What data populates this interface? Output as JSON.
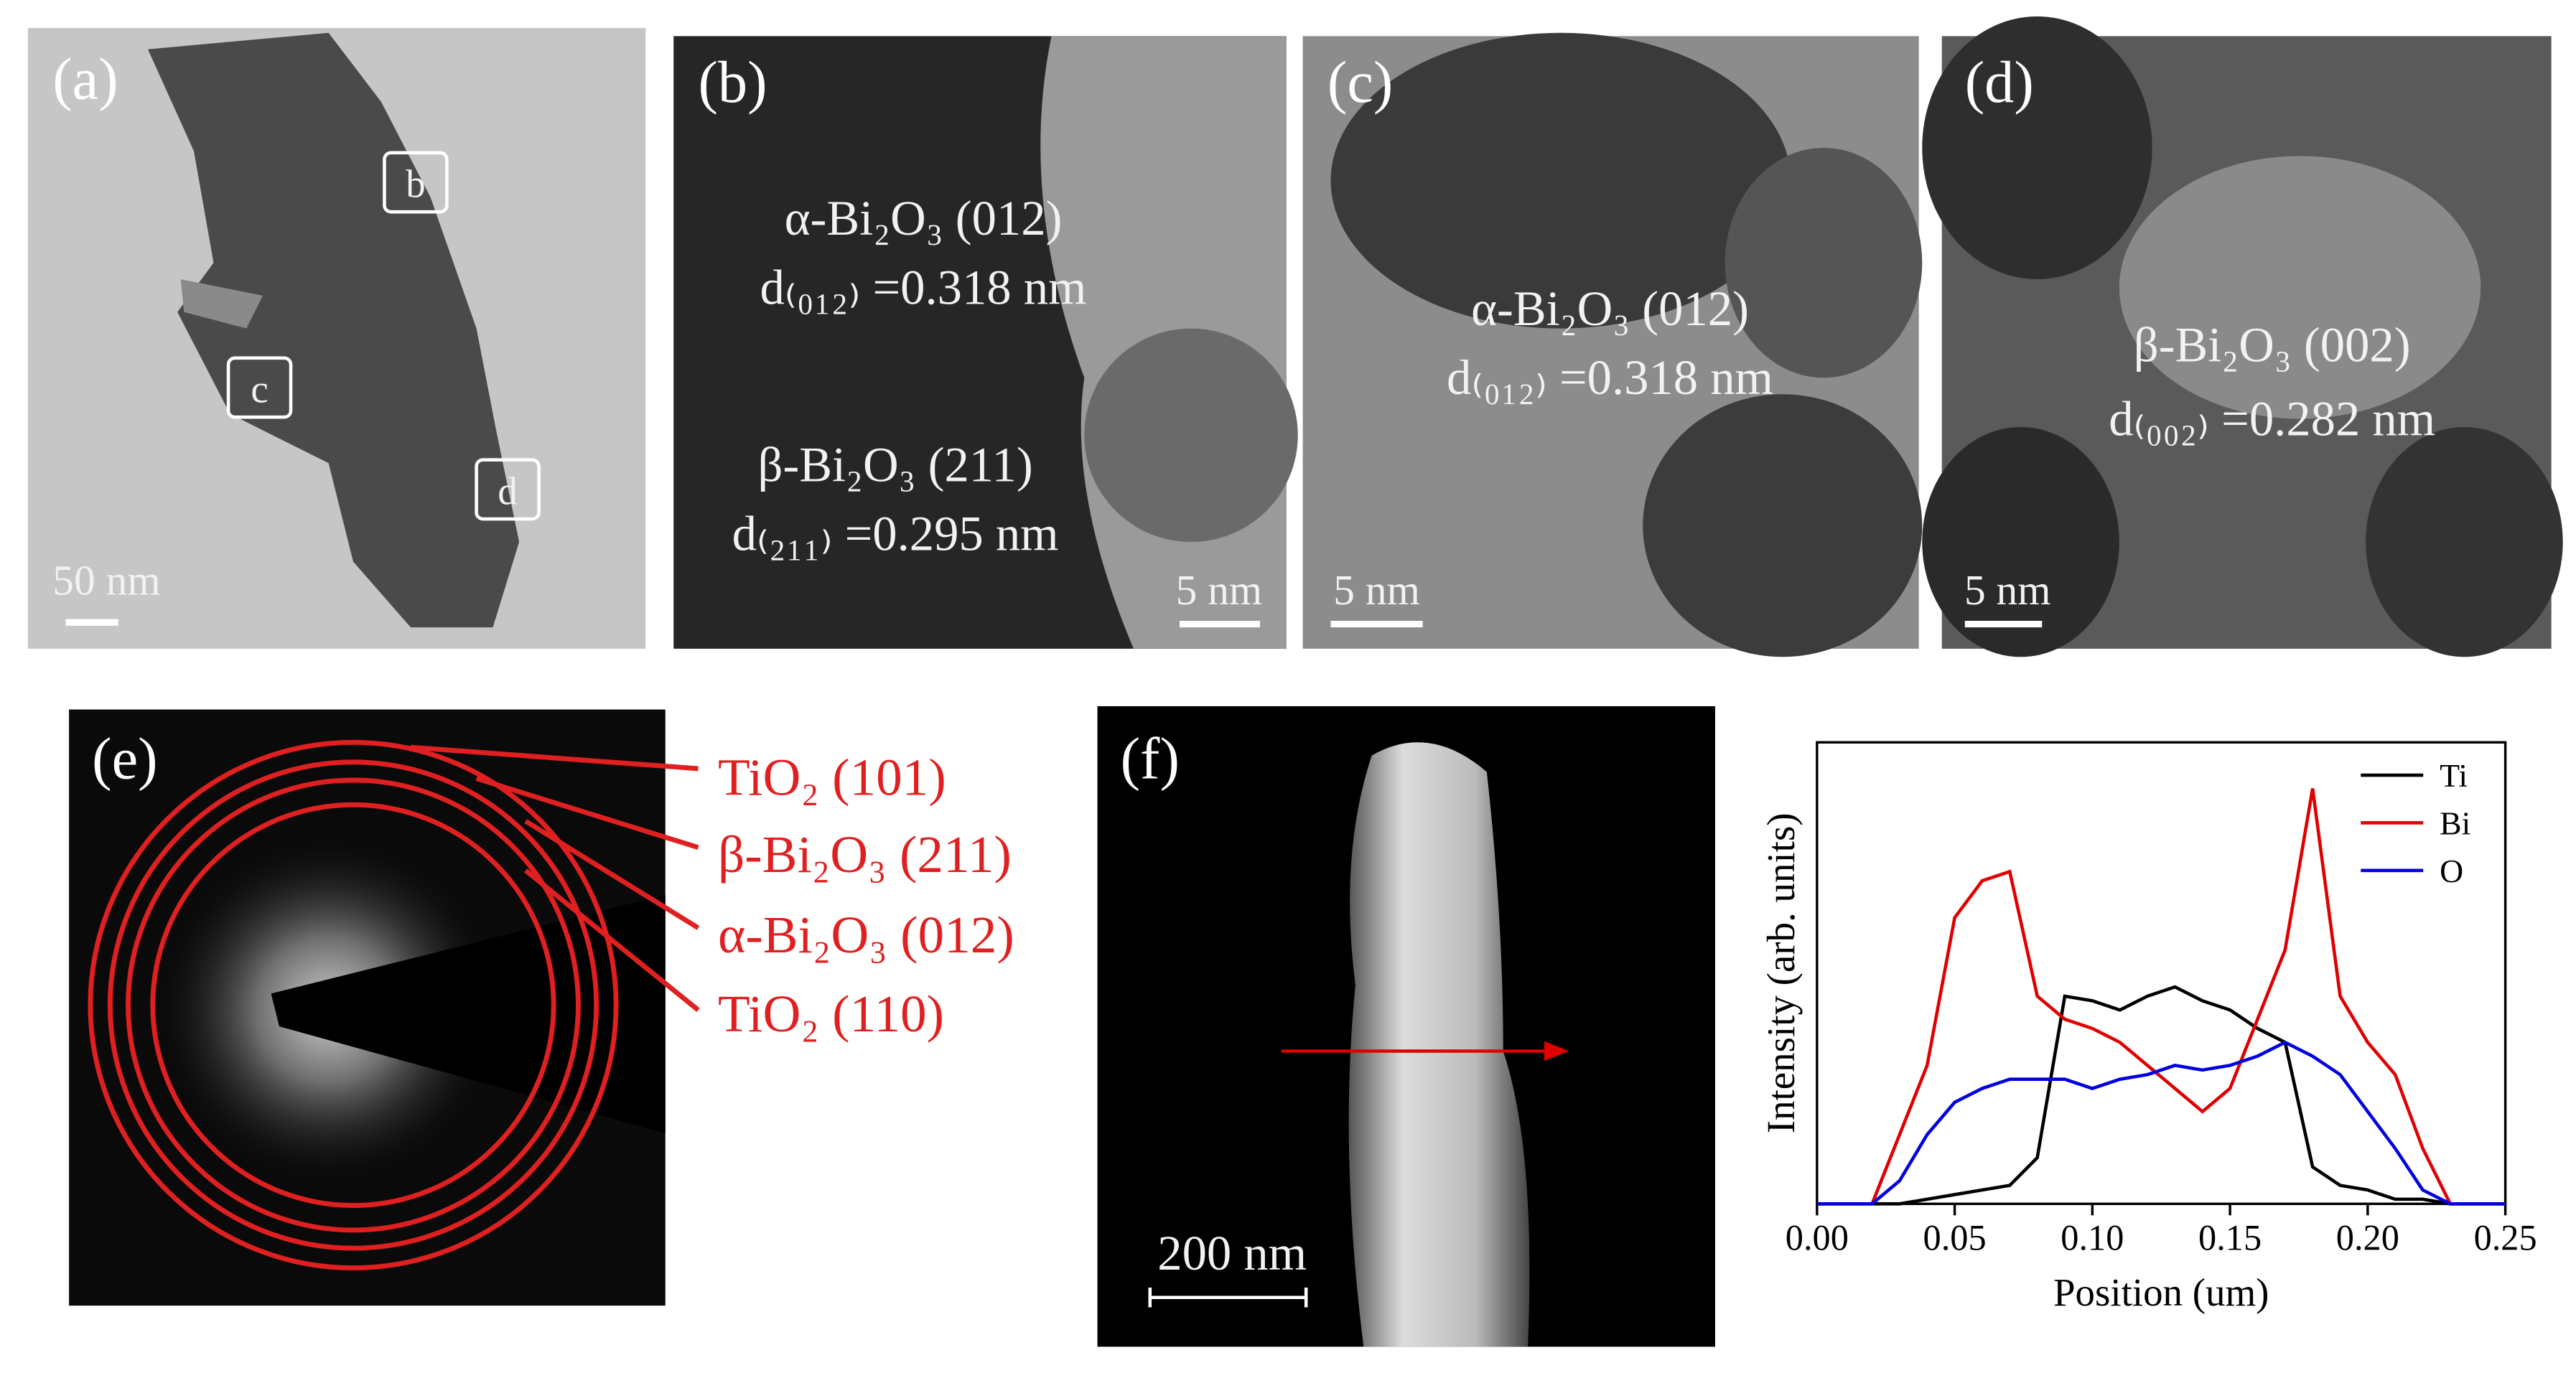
{
  "panels": {
    "a": {
      "label": "(a)",
      "boxes": [
        "b",
        "c",
        "d"
      ],
      "scale_bar": "50 nm"
    },
    "b": {
      "label": "(b)",
      "annotations": [
        "α-Bi₂O₃ (012)",
        "d₍₀₁₂₎ =0.318 nm",
        "β-Bi₂O₃ (211)",
        "d₍₂₁₁₎ =0.295 nm"
      ],
      "scale_bar": "5 nm"
    },
    "c": {
      "label": "(c)",
      "annotations": [
        "α-Bi₂O₃ (012)",
        "d₍₀₁₂₎ =0.318 nm"
      ],
      "scale_bar": "5 nm"
    },
    "d": {
      "label": "(d)",
      "annotations": [
        "β-Bi₂O₃ (002)",
        "d₍₀₀₂₎ =0.282 nm"
      ],
      "scale_bar": "5 nm"
    },
    "e": {
      "label": "(e)",
      "rings": [
        "TiO₂ (101)",
        "β-Bi₂O₃ (211)",
        "α-Bi₂O₃ (012)",
        "TiO₂ (110)"
      ]
    },
    "f": {
      "label": "(f)",
      "scale_bar": "200 nm"
    }
  },
  "chart_data": {
    "type": "line",
    "x_label": "Position (um)",
    "y_label": "Intensity (arb. units)",
    "x": [
      0,
      0.01,
      0.02,
      0.03,
      0.04,
      0.05,
      0.06,
      0.07,
      0.08,
      0.09,
      0.1,
      0.11,
      0.12,
      0.13,
      0.14,
      0.15,
      0.16,
      0.17,
      0.18,
      0.19,
      0.2,
      0.21,
      0.22,
      0.23,
      0.24,
      0.25
    ],
    "series": [
      {
        "name": "Ti",
        "color": "#000000",
        "values": [
          0,
          0,
          0,
          0,
          1,
          2,
          3,
          4,
          10,
          45,
          44,
          42,
          45,
          47,
          44,
          42,
          38,
          35,
          8,
          4,
          3,
          1,
          1,
          0,
          0,
          0
        ]
      },
      {
        "name": "Bi",
        "color": "#e00000",
        "values": [
          0,
          0,
          0,
          15,
          30,
          62,
          70,
          72,
          45,
          40,
          38,
          35,
          30,
          25,
          20,
          25,
          40,
          55,
          90,
          45,
          35,
          28,
          12,
          0,
          0,
          0
        ]
      },
      {
        "name": "O",
        "color": "#0000e0",
        "values": [
          0,
          0,
          0,
          5,
          15,
          22,
          25,
          27,
          27,
          27,
          25,
          27,
          28,
          30,
          29,
          30,
          32,
          35,
          32,
          28,
          20,
          12,
          3,
          0,
          0,
          0
        ]
      }
    ],
    "xlim": [
      0,
      0.25
    ],
    "ylim": [
      0,
      100
    ],
    "xticks": [
      {
        "value": 0,
        "label": "0.00"
      },
      {
        "value": 0.05,
        "label": "0.05"
      },
      {
        "value": 0.1,
        "label": "0.10"
      },
      {
        "value": 0.15,
        "label": "0.15"
      },
      {
        "value": 0.2,
        "label": "0.20"
      },
      {
        "value": 0.25,
        "label": "0.25"
      }
    ],
    "legend": "top-right"
  }
}
